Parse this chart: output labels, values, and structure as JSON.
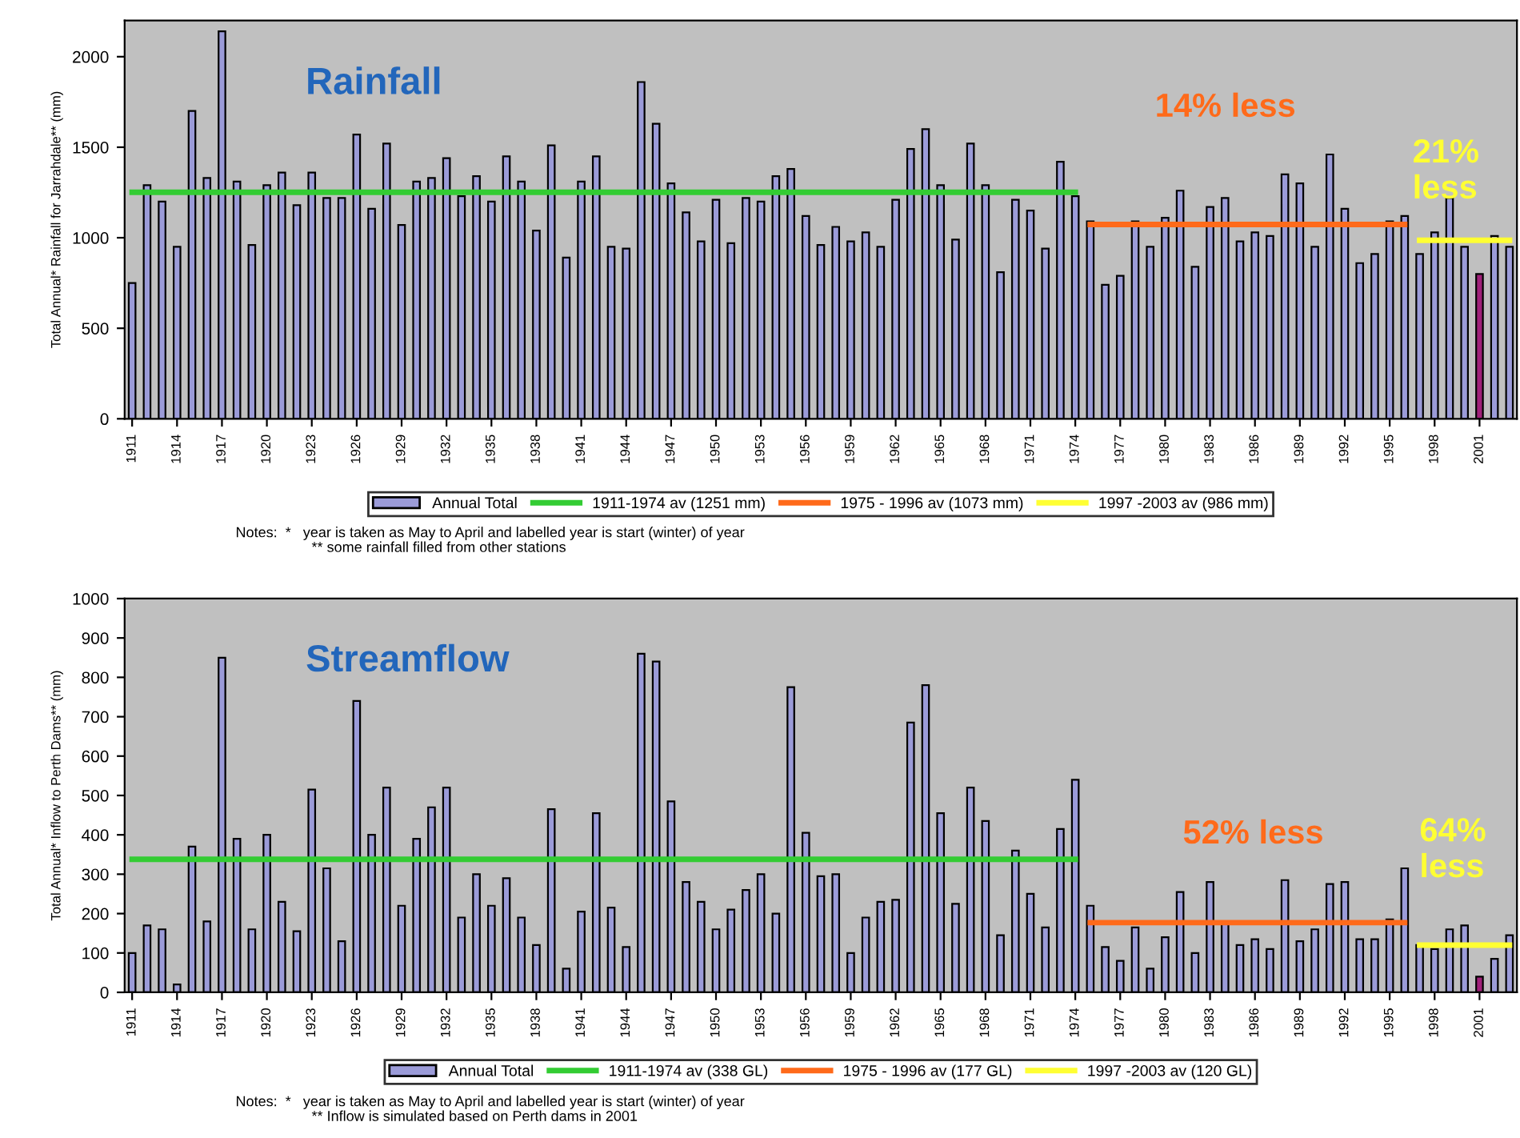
{
  "chart_data": [
    {
      "type": "bar",
      "title": "Rainfall",
      "ylabel": "Total Annual* Rainfall for Jarrahdale** (mm)",
      "x": [
        1911,
        1912,
        1913,
        1914,
        1915,
        1916,
        1917,
        1918,
        1919,
        1920,
        1921,
        1922,
        1923,
        1924,
        1925,
        1926,
        1927,
        1928,
        1929,
        1930,
        1931,
        1932,
        1933,
        1934,
        1935,
        1936,
        1937,
        1938,
        1939,
        1940,
        1941,
        1942,
        1943,
        1944,
        1945,
        1946,
        1947,
        1948,
        1949,
        1950,
        1951,
        1952,
        1953,
        1954,
        1955,
        1956,
        1957,
        1958,
        1959,
        1960,
        1961,
        1962,
        1963,
        1964,
        1965,
        1966,
        1967,
        1968,
        1969,
        1970,
        1971,
        1972,
        1973,
        1974,
        1975,
        1976,
        1977,
        1978,
        1979,
        1980,
        1981,
        1982,
        1983,
        1984,
        1985,
        1986,
        1987,
        1988,
        1989,
        1990,
        1991,
        1992,
        1993,
        1994,
        1995,
        1996,
        1997,
        1998,
        1999,
        2000,
        2001,
        2002,
        2003
      ],
      "series": [
        {
          "name": "Annual Total",
          "color": "#9b9bd8",
          "colors": [
            "#9b9bd8",
            "#9b9bd8",
            "#9b9bd8",
            "#9b9bd8",
            "#9b9bd8",
            "#9b9bd8",
            "#9b9bd8",
            "#9b9bd8",
            "#9b9bd8",
            "#9b9bd8",
            "#9b9bd8",
            "#9b9bd8",
            "#9b9bd8",
            "#9b9bd8",
            "#9b9bd8",
            "#9b9bd8",
            "#9b9bd8",
            "#9b9bd8",
            "#9b9bd8",
            "#9b9bd8",
            "#9b9bd8",
            "#9b9bd8",
            "#9b9bd8",
            "#9b9bd8",
            "#9b9bd8",
            "#9b9bd8",
            "#9b9bd8",
            "#9b9bd8",
            "#9b9bd8",
            "#9b9bd8",
            "#9b9bd8",
            "#9b9bd8",
            "#9b9bd8",
            "#9b9bd8",
            "#9b9bd8",
            "#9b9bd8",
            "#9b9bd8",
            "#9b9bd8",
            "#9b9bd8",
            "#9b9bd8",
            "#9b9bd8",
            "#9b9bd8",
            "#9b9bd8",
            "#9b9bd8",
            "#9b9bd8",
            "#9b9bd8",
            "#9b9bd8",
            "#9b9bd8",
            "#9b9bd8",
            "#9b9bd8",
            "#9b9bd8",
            "#9b9bd8",
            "#9b9bd8",
            "#9b9bd8",
            "#9b9bd8",
            "#9b9bd8",
            "#9b9bd8",
            "#9b9bd8",
            "#9b9bd8",
            "#9b9bd8",
            "#9b9bd8",
            "#9b9bd8",
            "#9b9bd8",
            "#9b9bd8",
            "#9b9bd8",
            "#9b9bd8",
            "#9b9bd8",
            "#9b9bd8",
            "#9b9bd8",
            "#9b9bd8",
            "#9b9bd8",
            "#9b9bd8",
            "#9b9bd8",
            "#9b9bd8",
            "#9b9bd8",
            "#9b9bd8",
            "#9b9bd8",
            "#9b9bd8",
            "#9b9bd8",
            "#9b9bd8",
            "#9b9bd8",
            "#9b9bd8",
            "#9b9bd8",
            "#9b9bd8",
            "#9b9bd8",
            "#9b9bd8",
            "#9b9bd8",
            "#9b9bd8",
            "#9b9bd8",
            "#9b9bd8",
            "#a0207a",
            "#9b9bd8",
            "#9b9bd8"
          ],
          "values": [
            750,
            1290,
            1200,
            950,
            1700,
            1330,
            2140,
            1310,
            960,
            1290,
            1360,
            1180,
            1360,
            1220,
            1220,
            1570,
            1160,
            1520,
            1070,
            1310,
            1330,
            1440,
            1230,
            1340,
            1200,
            1450,
            1310,
            1040,
            1510,
            890,
            1310,
            1450,
            950,
            940,
            1860,
            1630,
            1300,
            1140,
            980,
            1210,
            970,
            1220,
            1200,
            1340,
            1380,
            1120,
            960,
            1060,
            980,
            1030,
            950,
            1210,
            1490,
            1600,
            1290,
            990,
            1520,
            1290,
            810,
            1210,
            1150,
            940,
            1420,
            1230,
            1090,
            740,
            790,
            1090,
            950,
            1110,
            1260,
            840,
            1170,
            1220,
            980,
            1030,
            1010,
            1350,
            1300,
            950,
            1460,
            1160,
            860,
            910,
            1090,
            1120,
            910,
            1030,
            1220,
            950,
            800,
            1010,
            950
          ]
        },
        {
          "name": "1911-1974 av (1251 mm)",
          "type": "line",
          "color": "#33cc33",
          "x": [
            1911,
            1974
          ],
          "values": [
            1251,
            1251
          ]
        },
        {
          "name": "1975 - 1996 av (1073 mm)",
          "type": "line",
          "color": "#ff6a1a",
          "x": [
            1975,
            1996
          ],
          "values": [
            1073,
            1073
          ]
        },
        {
          "name": "1997 -2003 av (986 mm)",
          "type": "line",
          "color": "#ffff33",
          "x": [
            1997,
            2003
          ],
          "values": [
            986,
            986
          ]
        }
      ],
      "xlim": [
        1910.5,
        2003.5
      ],
      "xticks": [
        1911,
        1914,
        1917,
        1920,
        1923,
        1926,
        1929,
        1932,
        1935,
        1938,
        1941,
        1944,
        1947,
        1950,
        1953,
        1956,
        1959,
        1962,
        1965,
        1968,
        1971,
        1974,
        1977,
        1980,
        1983,
        1986,
        1989,
        1992,
        1995,
        1998,
        2001
      ],
      "ylim": [
        0,
        2200
      ],
      "yticks": [
        0,
        500,
        1000,
        1500,
        2000
      ],
      "grid": false,
      "legend": "bottom",
      "annotations": [
        "14% less",
        "21%\nless",
        "Notes:  *   year is taken as May to April and labelled year is start (winter) of year",
        "** some rainfall filled from other stations"
      ]
    },
    {
      "type": "bar",
      "title": "Streamflow",
      "ylabel": "Total Annual* Inflow to Perth Dams** (mm)",
      "x": [
        1911,
        1912,
        1913,
        1914,
        1915,
        1916,
        1917,
        1918,
        1919,
        1920,
        1921,
        1922,
        1923,
        1924,
        1925,
        1926,
        1927,
        1928,
        1929,
        1930,
        1931,
        1932,
        1933,
        1934,
        1935,
        1936,
        1937,
        1938,
        1939,
        1940,
        1941,
        1942,
        1943,
        1944,
        1945,
        1946,
        1947,
        1948,
        1949,
        1950,
        1951,
        1952,
        1953,
        1954,
        1955,
        1956,
        1957,
        1958,
        1959,
        1960,
        1961,
        1962,
        1963,
        1964,
        1965,
        1966,
        1967,
        1968,
        1969,
        1970,
        1971,
        1972,
        1973,
        1974,
        1975,
        1976,
        1977,
        1978,
        1979,
        1980,
        1981,
        1982,
        1983,
        1984,
        1985,
        1986,
        1987,
        1988,
        1989,
        1990,
        1991,
        1992,
        1993,
        1994,
        1995,
        1996,
        1997,
        1998,
        1999,
        2000,
        2001,
        2002,
        2003
      ],
      "series": [
        {
          "name": "Annual Total",
          "color": "#9b9bd8",
          "colors": [
            "#9b9bd8",
            "#9b9bd8",
            "#9b9bd8",
            "#9b9bd8",
            "#9b9bd8",
            "#9b9bd8",
            "#9b9bd8",
            "#9b9bd8",
            "#9b9bd8",
            "#9b9bd8",
            "#9b9bd8",
            "#9b9bd8",
            "#9b9bd8",
            "#9b9bd8",
            "#9b9bd8",
            "#9b9bd8",
            "#9b9bd8",
            "#9b9bd8",
            "#9b9bd8",
            "#9b9bd8",
            "#9b9bd8",
            "#9b9bd8",
            "#9b9bd8",
            "#9b9bd8",
            "#9b9bd8",
            "#9b9bd8",
            "#9b9bd8",
            "#9b9bd8",
            "#9b9bd8",
            "#9b9bd8",
            "#9b9bd8",
            "#9b9bd8",
            "#9b9bd8",
            "#9b9bd8",
            "#9b9bd8",
            "#9b9bd8",
            "#9b9bd8",
            "#9b9bd8",
            "#9b9bd8",
            "#9b9bd8",
            "#9b9bd8",
            "#9b9bd8",
            "#9b9bd8",
            "#9b9bd8",
            "#9b9bd8",
            "#9b9bd8",
            "#9b9bd8",
            "#9b9bd8",
            "#9b9bd8",
            "#9b9bd8",
            "#9b9bd8",
            "#9b9bd8",
            "#9b9bd8",
            "#9b9bd8",
            "#9b9bd8",
            "#9b9bd8",
            "#9b9bd8",
            "#9b9bd8",
            "#9b9bd8",
            "#9b9bd8",
            "#9b9bd8",
            "#9b9bd8",
            "#9b9bd8",
            "#9b9bd8",
            "#9b9bd8",
            "#9b9bd8",
            "#9b9bd8",
            "#9b9bd8",
            "#9b9bd8",
            "#9b9bd8",
            "#9b9bd8",
            "#9b9bd8",
            "#9b9bd8",
            "#9b9bd8",
            "#9b9bd8",
            "#9b9bd8",
            "#9b9bd8",
            "#9b9bd8",
            "#9b9bd8",
            "#9b9bd8",
            "#9b9bd8",
            "#9b9bd8",
            "#9b9bd8",
            "#9b9bd8",
            "#9b9bd8",
            "#9b9bd8",
            "#9b9bd8",
            "#9b9bd8",
            "#9b9bd8",
            "#9b9bd8",
            "#a0207a",
            "#9b9bd8",
            "#9b9bd8"
          ],
          "values": [
            100,
            170,
            160,
            20,
            370,
            180,
            850,
            390,
            160,
            400,
            230,
            155,
            515,
            315,
            130,
            740,
            400,
            520,
            220,
            390,
            470,
            520,
            190,
            300,
            220,
            290,
            190,
            120,
            465,
            60,
            205,
            455,
            215,
            115,
            860,
            840,
            485,
            280,
            230,
            160,
            210,
            260,
            300,
            200,
            775,
            405,
            295,
            300,
            100,
            190,
            230,
            235,
            685,
            780,
            455,
            225,
            520,
            435,
            145,
            360,
            250,
            165,
            415,
            540,
            220,
            115,
            80,
            165,
            60,
            140,
            255,
            100,
            280,
            180,
            120,
            135,
            110,
            285,
            130,
            160,
            275,
            280,
            135,
            135,
            185,
            315,
            120,
            110,
            160,
            170,
            40,
            85,
            145
          ]
        },
        {
          "name": "1911-1974 av (338 GL)",
          "type": "line",
          "color": "#33cc33",
          "x": [
            1911,
            1974
          ],
          "values": [
            338,
            338
          ]
        },
        {
          "name": "1975 - 1996 av (177 GL)",
          "type": "line",
          "color": "#ff6a1a",
          "x": [
            1975,
            1996
          ],
          "values": [
            177,
            177
          ]
        },
        {
          "name": "1997 -2003 av (120 GL)",
          "type": "line",
          "color": "#ffff33",
          "x": [
            1997,
            2003
          ],
          "values": [
            120,
            120
          ]
        }
      ],
      "xlim": [
        1910.5,
        2003.5
      ],
      "xticks": [
        1911,
        1914,
        1917,
        1920,
        1923,
        1926,
        1929,
        1932,
        1935,
        1938,
        1941,
        1944,
        1947,
        1950,
        1953,
        1956,
        1959,
        1962,
        1965,
        1968,
        1971,
        1974,
        1977,
        1980,
        1983,
        1986,
        1989,
        1992,
        1995,
        1998,
        2001
      ],
      "ylim": [
        0,
        1000
      ],
      "yticks": [
        0,
        100,
        200,
        300,
        400,
        500,
        600,
        700,
        800,
        900,
        1000
      ],
      "grid": false,
      "legend": "bottom",
      "annotations": [
        "52% less",
        "64%\nless",
        "Notes:  *   year is taken as May to April and labelled year is start (winter) of year",
        "** Inflow is simulated based on Perth dams in 2001"
      ]
    }
  ]
}
